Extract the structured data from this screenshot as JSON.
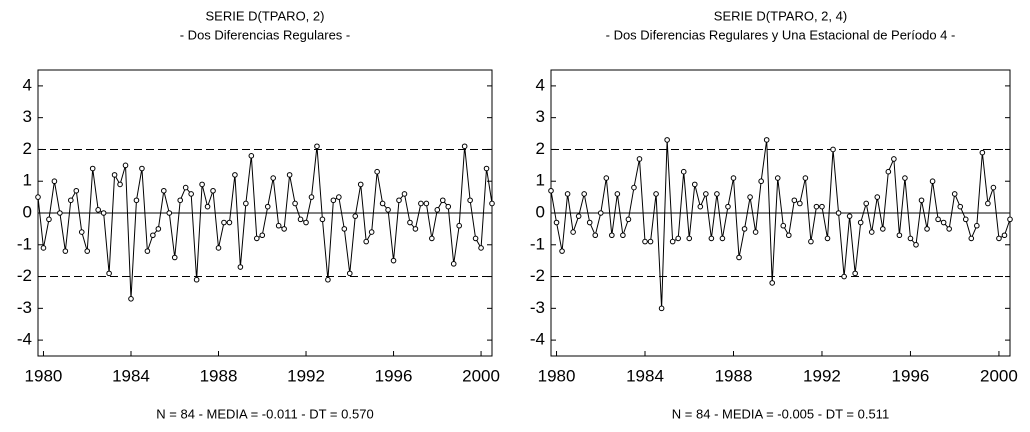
{
  "chart_data": [
    {
      "type": "line",
      "title": "SERIE D(TPARO, 2)",
      "subtitle": "- Dos Diferencias Regulares -",
      "note": "N = 84 - MEDIA = -0.011 - DT = 0.570",
      "x": [
        1979.75,
        1980,
        1980.25,
        1980.5,
        1980.75,
        1981,
        1981.25,
        1981.5,
        1981.75,
        1982,
        1982.25,
        1982.5,
        1982.75,
        1983,
        1983.25,
        1983.5,
        1983.75,
        1984,
        1984.25,
        1984.5,
        1984.75,
        1985,
        1985.25,
        1985.5,
        1985.75,
        1986,
        1986.25,
        1986.5,
        1986.75,
        1987,
        1987.25,
        1987.5,
        1987.75,
        1988,
        1988.25,
        1988.5,
        1988.75,
        1989,
        1989.25,
        1989.5,
        1989.75,
        1990,
        1990.25,
        1990.5,
        1990.75,
        1991,
        1991.25,
        1991.5,
        1991.75,
        1992,
        1992.25,
        1992.5,
        1992.75,
        1993,
        1993.25,
        1993.5,
        1993.75,
        1994,
        1994.25,
        1994.5,
        1994.75,
        1995,
        1995.25,
        1995.5,
        1995.75,
        1996,
        1996.25,
        1996.5,
        1996.75,
        1997,
        1997.25,
        1997.5,
        1997.75,
        1998,
        1998.25,
        1998.5,
        1998.75,
        1999,
        1999.25,
        1999.5,
        1999.75,
        2000,
        2000.25,
        2000.5
      ],
      "series": [
        {
          "color": "#000000",
          "values": [
            0.5,
            -1.1,
            -0.2,
            1.0,
            0.0,
            -1.2,
            0.4,
            0.7,
            -0.6,
            -1.2,
            1.4,
            0.1,
            0.0,
            -1.9,
            1.2,
            0.9,
            1.5,
            -2.7,
            0.4,
            1.4,
            -1.2,
            -0.7,
            -0.5,
            0.7,
            0.0,
            -1.4,
            0.4,
            0.8,
            0.6,
            -2.1,
            0.9,
            0.2,
            0.7,
            -1.1,
            -0.3,
            -0.3,
            1.2,
            -1.7,
            0.3,
            1.8,
            -0.8,
            -0.7,
            0.2,
            1.1,
            -0.4,
            -0.5,
            1.2,
            0.3,
            -0.2,
            -0.3,
            0.5,
            2.1,
            -0.2,
            -2.1,
            0.4,
            0.5,
            -0.5,
            -1.9,
            -0.1,
            0.9,
            -0.9,
            -0.6,
            1.3,
            0.3,
            0.1,
            -1.5,
            0.4,
            0.6,
            -0.3,
            -0.5,
            0.3,
            0.3,
            -0.8,
            0.1,
            0.4,
            0.2,
            -1.6,
            -0.4,
            2.1,
            0.4,
            -0.8,
            -1.1,
            1.4,
            0.3
          ]
        }
      ],
      "xlim": [
        1979.75,
        2000.5
      ],
      "xticks": [
        1980,
        1984,
        1988,
        1992,
        1996,
        2000
      ],
      "ylim": [
        -4.5,
        4.5
      ],
      "yticks": [
        -4,
        -3,
        -2,
        -1,
        0,
        1,
        2,
        3,
        4
      ],
      "hlines": [
        {
          "value": 2,
          "dash": true
        },
        {
          "value": 0,
          "dash": false
        },
        {
          "value": -2,
          "dash": true
        }
      ]
    },
    {
      "type": "line",
      "title": "SERIE D(TPARO, 2, 4)",
      "subtitle": "- Dos Diferencias Regulares y Una Estacional de Período 4 -",
      "note": "N = 84 - MEDIA = -0.005 - DT = 0.511",
      "x": [
        1979.75,
        1980,
        1980.25,
        1980.5,
        1980.75,
        1981,
        1981.25,
        1981.5,
        1981.75,
        1982,
        1982.25,
        1982.5,
        1982.75,
        1983,
        1983.25,
        1983.5,
        1983.75,
        1984,
        1984.25,
        1984.5,
        1984.75,
        1985,
        1985.25,
        1985.5,
        1985.75,
        1986,
        1986.25,
        1986.5,
        1986.75,
        1987,
        1987.25,
        1987.5,
        1987.75,
        1988,
        1988.25,
        1988.5,
        1988.75,
        1989,
        1989.25,
        1989.5,
        1989.75,
        1990,
        1990.25,
        1990.5,
        1990.75,
        1991,
        1991.25,
        1991.5,
        1991.75,
        1992,
        1992.25,
        1992.5,
        1992.75,
        1993,
        1993.25,
        1993.5,
        1993.75,
        1994,
        1994.25,
        1994.5,
        1994.75,
        1995,
        1995.25,
        1995.5,
        1995.75,
        1996,
        1996.25,
        1996.5,
        1996.75,
        1997,
        1997.25,
        1997.5,
        1997.75,
        1998,
        1998.25,
        1998.5,
        1998.75,
        1999,
        1999.25,
        1999.5,
        1999.75,
        2000,
        2000.25,
        2000.5
      ],
      "series": [
        {
          "color": "#000000",
          "values": [
            0.7,
            -0.3,
            -1.2,
            0.6,
            -0.6,
            -0.1,
            0.6,
            -0.3,
            -0.7,
            0.0,
            1.1,
            -0.7,
            0.6,
            -0.7,
            -0.2,
            0.8,
            1.7,
            -0.9,
            -0.9,
            0.6,
            -3.0,
            2.3,
            -0.9,
            -0.8,
            1.3,
            -0.8,
            0.9,
            0.2,
            0.6,
            -0.8,
            0.6,
            -0.8,
            0.2,
            1.1,
            -1.4,
            -0.5,
            0.5,
            -0.6,
            1.0,
            2.3,
            -2.2,
            1.1,
            -0.4,
            -0.7,
            0.4,
            0.3,
            1.1,
            -0.9,
            0.2,
            0.2,
            -0.8,
            2.0,
            0.0,
            -2.0,
            -0.1,
            -1.9,
            -0.3,
            0.3,
            -0.6,
            0.5,
            -0.5,
            1.3,
            1.7,
            -0.7,
            1.1,
            -0.8,
            -1.0,
            0.4,
            -0.5,
            1.0,
            -0.2,
            -0.3,
            -0.5,
            0.6,
            0.2,
            -0.2,
            -0.8,
            -0.4,
            1.9,
            0.3,
            0.8,
            -0.8,
            -0.7,
            -0.2
          ]
        }
      ],
      "xlim": [
        1979.75,
        2000.5
      ],
      "xticks": [
        1980,
        1984,
        1988,
        1992,
        1996,
        2000
      ],
      "ylim": [
        -4.5,
        4.5
      ],
      "yticks": [
        -4,
        -3,
        -2,
        -1,
        0,
        1,
        2,
        3,
        4
      ],
      "hlines": [
        {
          "value": 2,
          "dash": true
        },
        {
          "value": 0,
          "dash": false
        },
        {
          "value": -2,
          "dash": true
        }
      ]
    }
  ]
}
